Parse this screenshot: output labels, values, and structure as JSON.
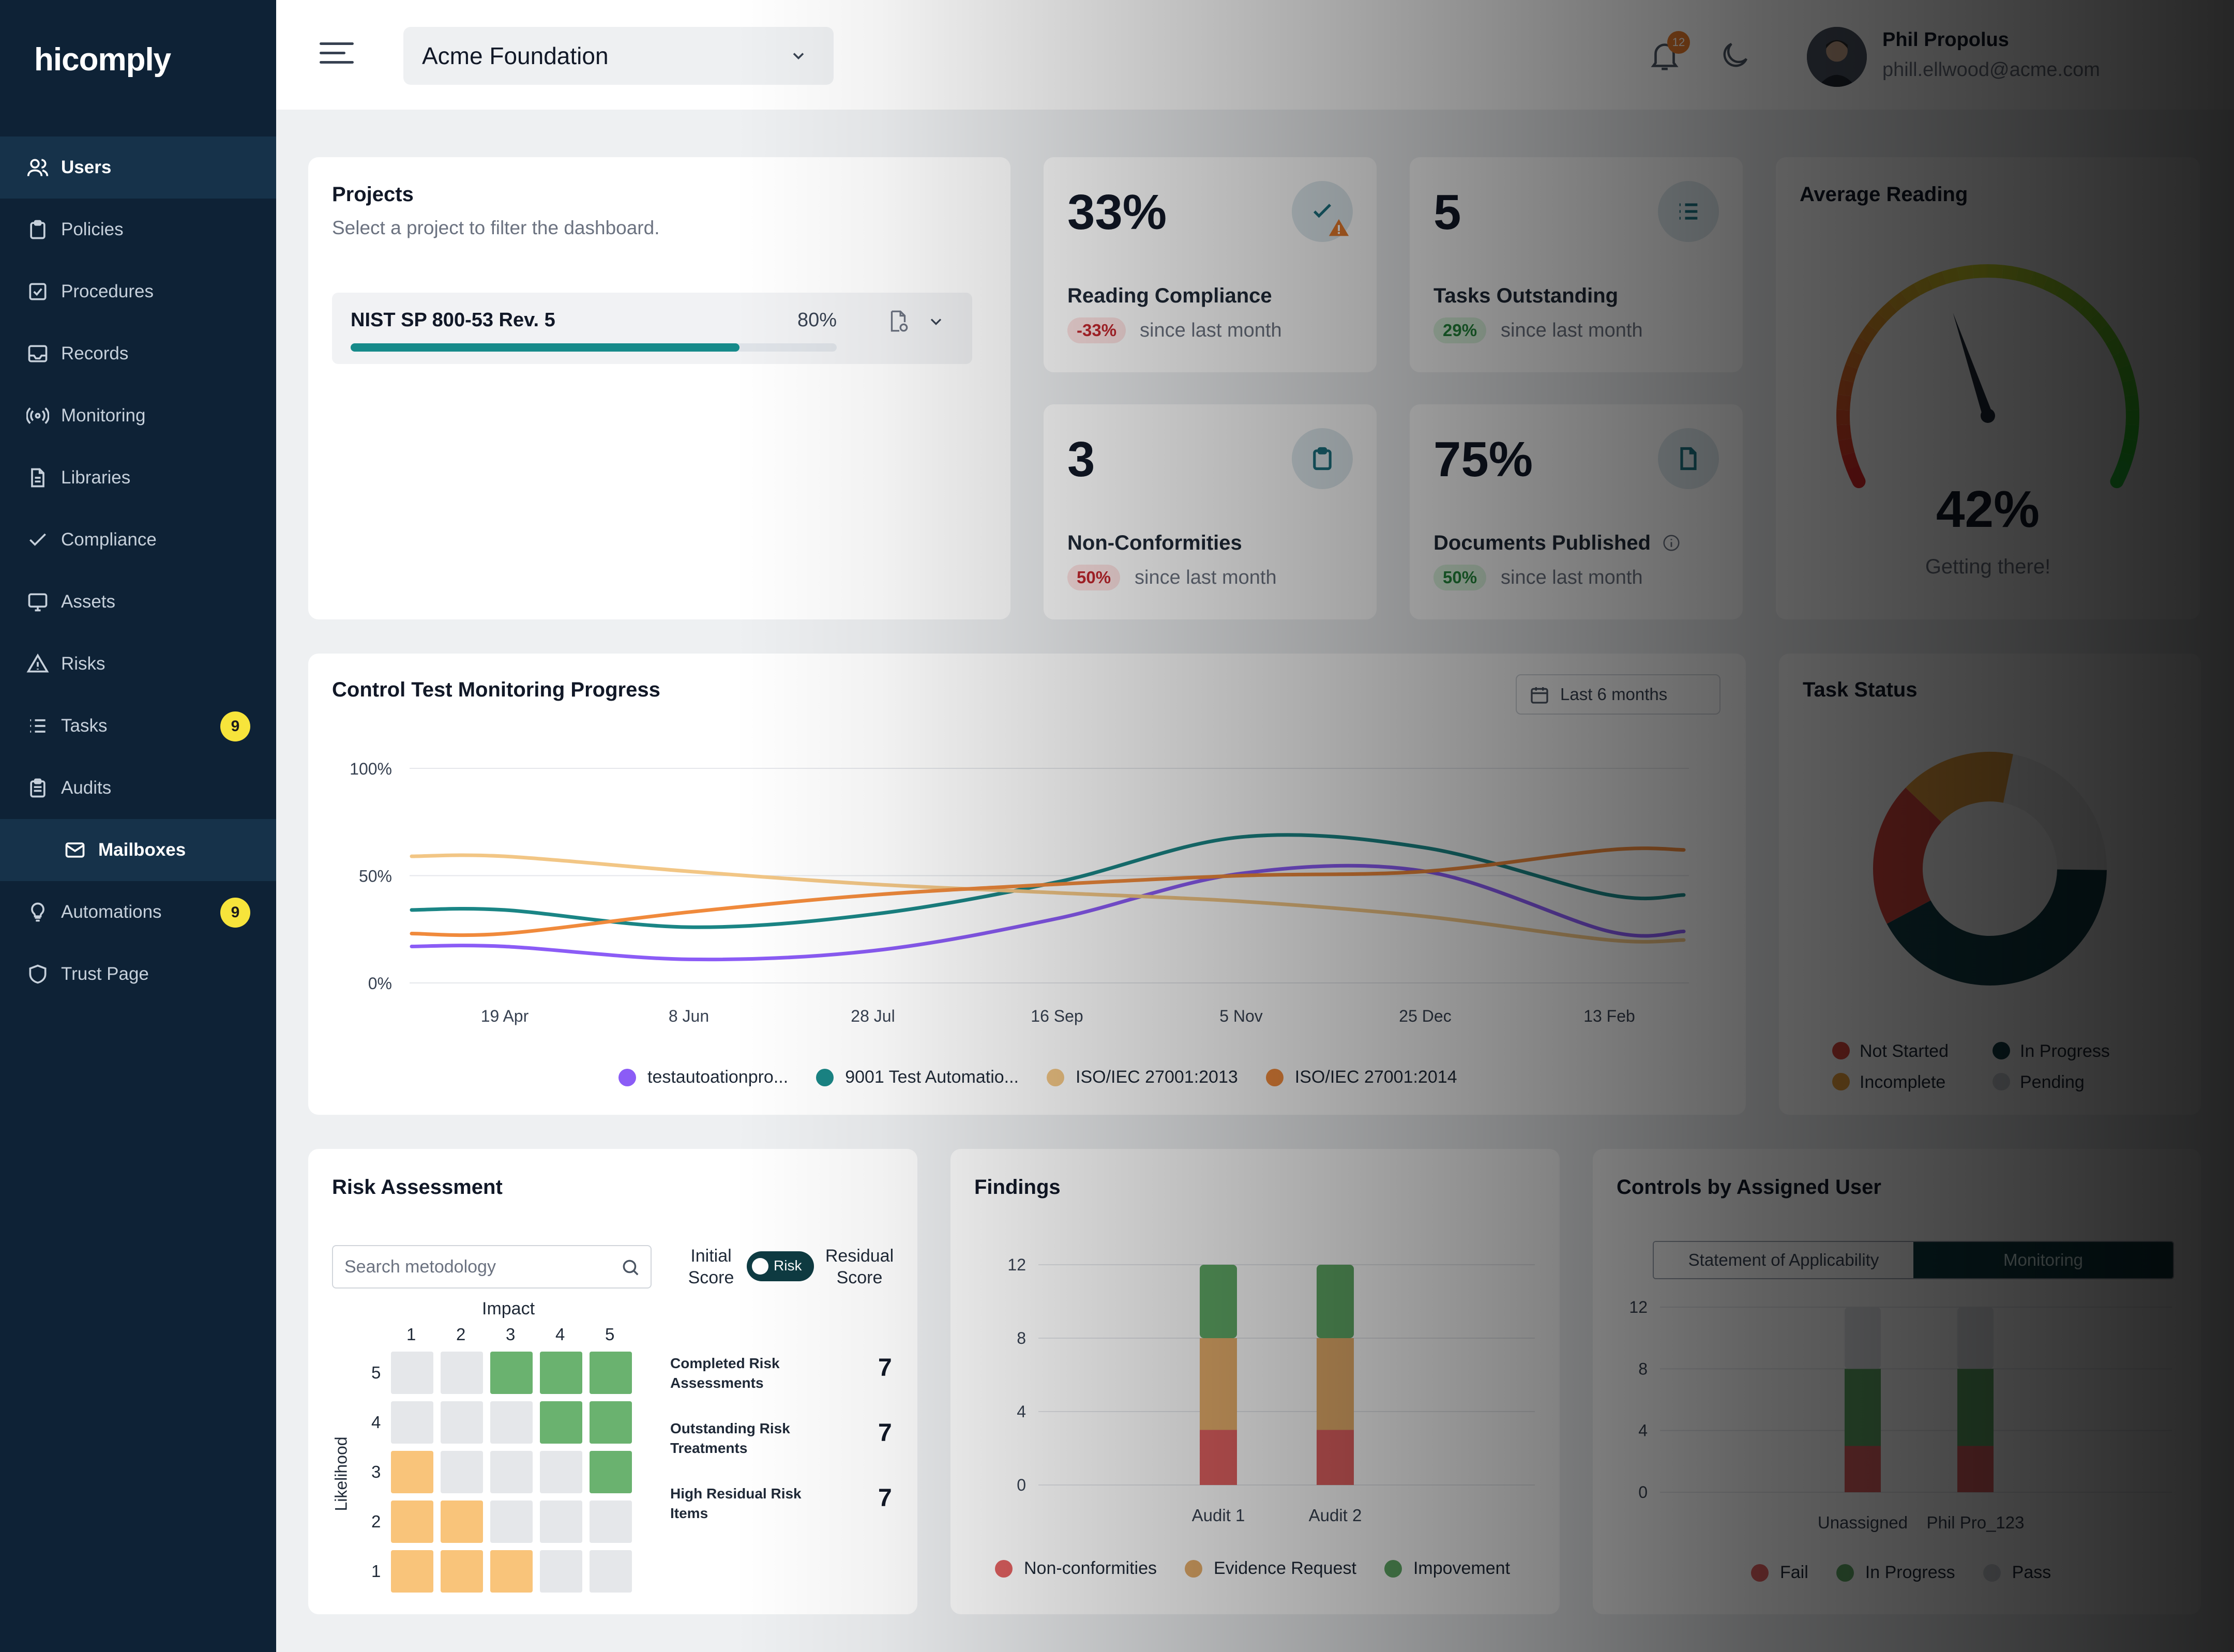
{
  "brand": {
    "logo": "hicomply"
  },
  "sidebar": {
    "items": [
      {
        "label": "Users",
        "icon": "users-icon"
      },
      {
        "label": "Policies",
        "icon": "clipboard-icon"
      },
      {
        "label": "Procedures",
        "icon": "checkbox-icon"
      },
      {
        "label": "Records",
        "icon": "inbox-icon"
      },
      {
        "label": "Monitoring",
        "icon": "broadcast-icon"
      },
      {
        "label": "Libraries",
        "icon": "document-icon"
      },
      {
        "label": "Compliance",
        "icon": "check-icon"
      },
      {
        "label": "Assets",
        "icon": "monitor-icon"
      },
      {
        "label": "Risks",
        "icon": "warning-icon"
      },
      {
        "label": "Tasks",
        "icon": "list-icon",
        "badge": "9"
      },
      {
        "label": "Audits",
        "icon": "clipboard-list-icon"
      },
      {
        "label": "Mailboxes",
        "icon": "mail-icon"
      },
      {
        "label": "Automations",
        "icon": "lightbulb-icon",
        "badge": "9"
      },
      {
        "label": "Trust Page",
        "icon": "shield-icon"
      }
    ]
  },
  "header": {
    "org": "Acme Foundation",
    "notifications": "12",
    "user_name": "Phil Propolus",
    "user_email": "phill.ellwood@acme.com"
  },
  "projects": {
    "title": "Projects",
    "subtitle": "Select a project to filter the dashboard.",
    "item_name": "NIST SP 800-53 Rev. 5",
    "item_pct": "80%",
    "item_progress": 0.8
  },
  "stats": {
    "reading": {
      "value": "33%",
      "label": "Reading Compliance",
      "change": "-33%",
      "since": "since last month"
    },
    "tasks": {
      "value": "5",
      "label": "Tasks Outstanding",
      "change": "29%",
      "since": "since last month"
    },
    "nonconf": {
      "value": "3",
      "label": "Non-Conformities",
      "change": "50%",
      "since": "since last month"
    },
    "docs": {
      "value": "75%",
      "label": "Documents Published",
      "change": "50%",
      "since": "since last month"
    }
  },
  "avg_reading": {
    "title": "Average Reading",
    "value": "42%",
    "caption": "Getting there!",
    "fraction": 0.42
  },
  "control_test": {
    "title": "Control Test Monitoring Progress",
    "range": "Last 6 months",
    "legend": [
      "testautoationpro...",
      "9001 Test Automatio...",
      "ISO/IEC 27001:2013",
      "ISO/IEC 27001:2014"
    ]
  },
  "task_status": {
    "title": "Task Status",
    "legend": [
      "Not Started",
      "In Progress",
      "Incomplete",
      "Pending"
    ]
  },
  "risk": {
    "title": "Risk Assessment",
    "search_placeholder": "Search metodology",
    "initial_label": "Initial Score",
    "toggle_label": "Risk",
    "residual_label": "Residual Score",
    "impact_label": "Impact",
    "likelihood_label": "Likelihood",
    "axis": [
      "1",
      "2",
      "3",
      "4",
      "5"
    ],
    "stats": [
      {
        "label": "Completed Risk Assessments",
        "value": "7"
      },
      {
        "label": "Outstanding Risk Treatments",
        "value": "7"
      },
      {
        "label": "High Residual Risk Items",
        "value": "7"
      }
    ]
  },
  "findings": {
    "title": "Findings",
    "legend": [
      "Non-conformities",
      "Evidence Request",
      "Impovement"
    ]
  },
  "controls": {
    "title": "Controls by Assigned User",
    "tab_a": "Statement of Applicability",
    "tab_b": "Monitoring",
    "legend": [
      "Fail",
      "In Progress",
      "Pass"
    ]
  },
  "chart_data": [
    {
      "type": "line",
      "title": "Control Test Monitoring Progress",
      "categories": [
        "19 Apr",
        "8 Jun",
        "28 Jul",
        "16 Sep",
        "5 Nov",
        "25 Dec",
        "13 Feb"
      ],
      "yticks": [
        "0%",
        "50%",
        "100%"
      ],
      "ylim": [
        0,
        100
      ],
      "series": [
        {
          "name": "testautoationpro...",
          "color": "#8b5cf6",
          "values": [
            17,
            11,
            15,
            30,
            51,
            52,
            24
          ]
        },
        {
          "name": "9001 Test Automatio...",
          "color": "#1a8585",
          "values": [
            34,
            26,
            32,
            47,
            68,
            63,
            41
          ]
        },
        {
          "name": "ISO/IEC 27001:2013",
          "color": "#f2c685",
          "values": [
            59,
            52,
            46,
            42,
            38,
            31,
            20
          ]
        },
        {
          "name": "ISO/IEC 27001:2014",
          "color": "#f08a3c",
          "values": [
            23,
            33,
            41,
            46,
            50,
            52,
            62
          ]
        }
      ]
    },
    {
      "type": "pie",
      "title": "Task Status",
      "categories": [
        "Not Started",
        "In Progress",
        "Incomplete",
        "Pending"
      ],
      "values": [
        20,
        42,
        16,
        22
      ],
      "colors": [
        "#d9453c",
        "#123f48",
        "#e99f3c",
        "#eeeeee"
      ]
    },
    {
      "type": "bar",
      "title": "Findings",
      "stacked": true,
      "categories": [
        "Audit 1",
        "Audit 2"
      ],
      "yticks": [
        "0",
        "4",
        "8",
        "12"
      ],
      "ylim": [
        0,
        12
      ],
      "series": [
        {
          "name": "Non-conformities",
          "color": "#df6060",
          "values": [
            3,
            3
          ]
        },
        {
          "name": "Evidence Request",
          "color": "#e5ad6a",
          "values": [
            5,
            5
          ]
        },
        {
          "name": "Impovement",
          "color": "#5fa865",
          "values": [
            4,
            4
          ]
        }
      ]
    },
    {
      "type": "bar",
      "title": "Controls by Assigned User",
      "stacked": true,
      "categories": [
        "Unassigned",
        "Phil Pro_123"
      ],
      "yticks": [
        "0",
        "4",
        "8",
        "12"
      ],
      "ylim": [
        0,
        12
      ],
      "series": [
        {
          "name": "Fail",
          "color": "#df6060",
          "values": [
            3,
            3
          ]
        },
        {
          "name": "In Progress",
          "color": "#5fa865",
          "values": [
            5,
            5
          ]
        },
        {
          "name": "Pass",
          "color": "#e5e7eb",
          "values": [
            4,
            4
          ]
        }
      ]
    }
  ],
  "risk_matrix": {
    "rows": [
      [
        "gray",
        "gray",
        "green",
        "green",
        "green"
      ],
      [
        "gray",
        "gray",
        "gray",
        "green",
        "green"
      ],
      [
        "amber",
        "gray",
        "gray",
        "gray",
        "green"
      ],
      [
        "amber",
        "amber",
        "gray",
        "gray",
        "gray"
      ],
      [
        "amber",
        "amber",
        "amber",
        "gray",
        "gray"
      ]
    ],
    "palette": {
      "gray": "#e5e7ea",
      "green": "#6ab26f",
      "amber": "#f9c47a"
    }
  }
}
